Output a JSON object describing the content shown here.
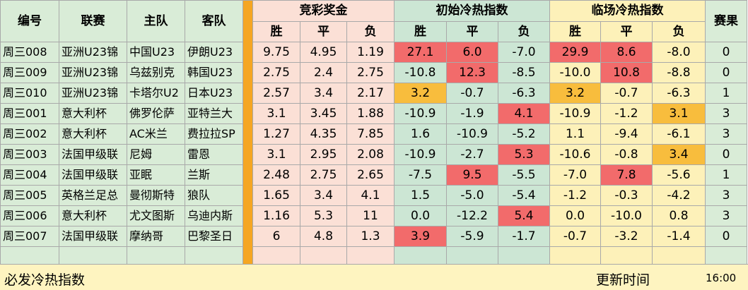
{
  "headers": {
    "id": "编号",
    "league": "联赛",
    "home": "主队",
    "away": "客队",
    "jingcai": "竞彩奖金",
    "initial": "初始冷热指数",
    "final": "临场冷热指数",
    "result": "赛果",
    "win": "胜",
    "draw": "平",
    "lose": "负"
  },
  "rows": [
    {
      "id": "周三008",
      "league": "亚洲U23锦",
      "home": "中国U23",
      "away": "伊朗U23",
      "odds": [
        "9.75",
        "4.95",
        "1.19"
      ],
      "init": [
        "27.1",
        "6.0",
        "-7.0"
      ],
      "fin": [
        "29.9",
        "8.6",
        "-8.0"
      ],
      "result": "0"
    },
    {
      "id": "周三009",
      "league": "亚洲U23锦",
      "home": "乌兹别克",
      "away": "韩国U23",
      "odds": [
        "2.75",
        "2.4",
        "2.75"
      ],
      "init": [
        "-10.8",
        "12.3",
        "-8.5"
      ],
      "fin": [
        "-10.0",
        "10.8",
        "-8.8"
      ],
      "result": "0"
    },
    {
      "id": "周三010",
      "league": "亚洲U23锦",
      "home": "卡塔尔U2",
      "away": "日本U23",
      "odds": [
        "2.57",
        "3.4",
        "2.17"
      ],
      "init": [
        "3.2",
        "-0.7",
        "-6.3"
      ],
      "fin": [
        "3.2",
        "-0.7",
        "-6.3"
      ],
      "result": "1"
    },
    {
      "id": "周三001",
      "league": "意大利杯",
      "home": "佛罗伦萨",
      "away": "亚特兰大",
      "odds": [
        "3.1",
        "3.45",
        "1.88"
      ],
      "init": [
        "-10.9",
        "-1.9",
        "4.1"
      ],
      "fin": [
        "-10.9",
        "-1.2",
        "3.1"
      ],
      "result": "3"
    },
    {
      "id": "周三002",
      "league": "意大利杯",
      "home": "AC米兰",
      "away": "费拉拉SP",
      "odds": [
        "1.27",
        "4.35",
        "7.85"
      ],
      "init": [
        "1.6",
        "-10.9",
        "-5.2"
      ],
      "fin": [
        "1.1",
        "-9.4",
        "-6.1"
      ],
      "result": "3"
    },
    {
      "id": "周三003",
      "league": "法国甲级联",
      "home": "尼姆",
      "away": "雷恩",
      "odds": [
        "3.1",
        "2.95",
        "2.08"
      ],
      "init": [
        "-10.9",
        "-2.7",
        "5.3"
      ],
      "fin": [
        "-10.6",
        "-0.8",
        "3.4"
      ],
      "result": "0"
    },
    {
      "id": "周三004",
      "league": "法国甲级联",
      "home": "亚眠",
      "away": "兰斯",
      "odds": [
        "2.48",
        "2.75",
        "2.65"
      ],
      "init": [
        "-7.5",
        "9.5",
        "-5.5"
      ],
      "fin": [
        "-7.0",
        "7.8",
        "-5.6"
      ],
      "result": "1"
    },
    {
      "id": "周三005",
      "league": "英格兰足总",
      "home": "曼彻斯特",
      "away": "狼队",
      "odds": [
        "1.65",
        "3.4",
        "4.1"
      ],
      "init": [
        "1.5",
        "-5.0",
        "-5.4"
      ],
      "fin": [
        "-1.2",
        "-0.3",
        "-4.2"
      ],
      "result": "3"
    },
    {
      "id": "周三006",
      "league": "意大利杯",
      "home": "尤文图斯",
      "away": "乌迪内斯",
      "odds": [
        "1.16",
        "5.3",
        "11"
      ],
      "init": [
        "0.0",
        "-12.2",
        "5.4"
      ],
      "fin": [
        "0.0",
        "-10.0",
        "0.8"
      ],
      "result": "3"
    },
    {
      "id": "周三007",
      "league": "法国甲级联",
      "home": "摩纳哥",
      "away": "巴黎圣日",
      "odds": [
        "6",
        "4.8",
        "1.3"
      ],
      "init": [
        "3.9",
        "-5.9",
        "-1.7"
      ],
      "fin": [
        "-0.7",
        "-3.2",
        "-1.4"
      ],
      "result": "0"
    }
  ],
  "highlights": {
    "init": [
      [
        "red",
        "red",
        ""
      ],
      [
        "",
        "red",
        ""
      ],
      [
        "orange",
        "",
        ""
      ],
      [
        "",
        "",
        "red"
      ],
      [
        "",
        "",
        ""
      ],
      [
        "",
        "",
        "red"
      ],
      [
        "",
        "red",
        ""
      ],
      [
        "",
        "",
        ""
      ],
      [
        "",
        "",
        "red"
      ],
      [
        "red",
        "",
        ""
      ]
    ],
    "fin": [
      [
        "red",
        "red",
        ""
      ],
      [
        "",
        "red",
        ""
      ],
      [
        "orange",
        "",
        ""
      ],
      [
        "",
        "",
        "orange"
      ],
      [
        "",
        "",
        ""
      ],
      [
        "",
        "",
        "orange"
      ],
      [
        "",
        "red",
        ""
      ],
      [
        "",
        "",
        ""
      ],
      [
        "",
        "",
        ""
      ],
      [
        "",
        "",
        ""
      ]
    ]
  },
  "colors": {
    "red": "#f26b6b",
    "orange": "#f8bd3d",
    "separator": "#f5a623",
    "info_bg": "#d9ecd7",
    "odds_bg": "#fbe0d6",
    "initial_bg": "#cce6d4",
    "final_bg": "#fdf1b9",
    "footer_bg": "#fef4c0"
  },
  "footer": {
    "label": "必发冷热指数",
    "updated_label": "更新时间",
    "updated_time": "16:00"
  }
}
